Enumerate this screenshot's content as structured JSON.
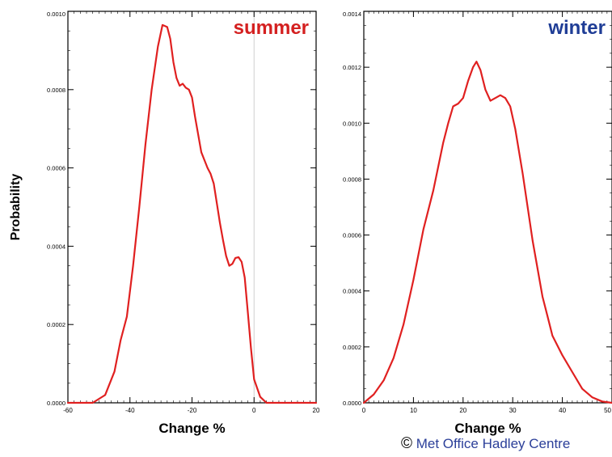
{
  "credit": {
    "symbol": "©",
    "text": "Met Office Hadley Centre"
  },
  "colors": {
    "curve": "#e02020",
    "summer_title": "#d42020",
    "winter_title": "#1f3d96",
    "credit": "#2b3f99"
  },
  "chart_data": [
    {
      "type": "line",
      "title": "summer",
      "xlabel": "Change %",
      "ylabel": "Probability",
      "xlim": [
        -60,
        20
      ],
      "ylim": [
        0,
        0.001
      ],
      "xticks": [
        -60,
        -40,
        -20,
        0,
        20
      ],
      "xtick_labels": [
        "-60",
        "-40",
        "-20",
        "0",
        "20"
      ],
      "yticks": [
        0,
        0.0002,
        0.0004,
        0.0006,
        0.0008,
        0.001
      ],
      "ytick_labels": [
        "0.0000",
        "0.0002",
        "0.0004",
        "0.0006",
        "0.0008",
        "0.0010"
      ],
      "zero_line": 0,
      "x": [
        -60,
        -52,
        -48,
        -45,
        -43,
        -41,
        -39,
        -37,
        -35,
        -33,
        -31,
        -29.5,
        -28,
        -27,
        -26,
        -25,
        -24,
        -23,
        -22,
        -21,
        -20,
        -19,
        -17,
        -15,
        -14,
        -13,
        -12,
        -11,
        -10,
        -9,
        -8,
        -7,
        -6,
        -5,
        -4,
        -3,
        -2,
        -1,
        0,
        2,
        4,
        6,
        8,
        10,
        20
      ],
      "y": [
        0,
        0,
        2e-05,
        8e-05,
        0.00016,
        0.00022,
        0.00035,
        0.0005,
        0.00066,
        0.0008,
        0.00091,
        0.000965,
        0.00096,
        0.00093,
        0.00087,
        0.00083,
        0.00081,
        0.000815,
        0.000805,
        0.0008,
        0.00078,
        0.00073,
        0.00064,
        0.0006,
        0.000585,
        0.00056,
        0.00051,
        0.00046,
        0.000415,
        0.000375,
        0.00035,
        0.000355,
        0.00037,
        0.000372,
        0.00036,
        0.00032,
        0.00023,
        0.00014,
        6e-05,
        1.5e-05,
        0,
        0,
        0,
        0,
        0
      ]
    },
    {
      "type": "line",
      "title": "winter",
      "xlabel": "Change %",
      "ylabel": "",
      "xlim": [
        0,
        50
      ],
      "ylim": [
        0,
        0.0014
      ],
      "xticks": [
        0,
        10,
        20,
        30,
        40,
        50
      ],
      "xtick_labels": [
        "0",
        "10",
        "20",
        "30",
        "40",
        "50"
      ],
      "yticks": [
        0,
        0.0002,
        0.0004,
        0.0006,
        0.0008,
        0.001,
        0.0012,
        0.0014
      ],
      "ytick_labels": [
        "0.0000",
        "0.0002",
        "0.0004",
        "0.0006",
        "0.0008",
        "0.0010",
        "0.0012",
        "0.0014"
      ],
      "x": [
        0,
        2,
        4,
        6,
        8,
        10,
        12,
        14,
        16,
        17,
        18,
        19,
        20,
        21,
        22,
        22.7,
        23.5,
        24.5,
        25.5,
        26.5,
        27.5,
        28.5,
        29.5,
        30.5,
        32,
        34,
        36,
        37,
        38,
        40,
        42,
        44,
        46,
        48,
        50
      ],
      "y": [
        0,
        3e-05,
        8e-05,
        0.00016,
        0.00028,
        0.00044,
        0.00062,
        0.00076,
        0.00093,
        0.001,
        0.00106,
        0.00107,
        0.00109,
        0.00115,
        0.0012,
        0.00122,
        0.00119,
        0.00112,
        0.00108,
        0.00109,
        0.0011,
        0.00109,
        0.00106,
        0.00098,
        0.00082,
        0.00058,
        0.00038,
        0.00031,
        0.00024,
        0.00017,
        0.00011,
        5e-05,
        2e-05,
        5e-06,
        0
      ]
    }
  ]
}
